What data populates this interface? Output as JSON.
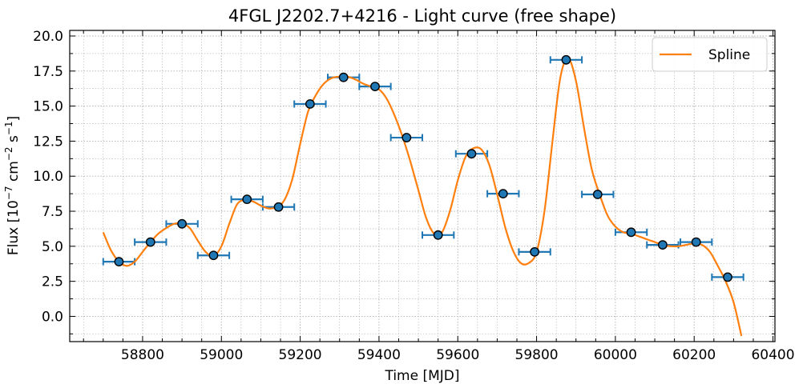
{
  "chart_data": {
    "type": "line",
    "title": "4FGL J2202.7+4216 - Light curve (free shape)",
    "xlabel": "Time [MJD]",
    "ylabel": {
      "pre": "Flux [10",
      "exp1": "−7",
      "mid": " cm",
      "exp2": "−2",
      "mid2": " s",
      "exp3": "−1",
      "post": "]"
    },
    "xlim": [
      58615,
      60405
    ],
    "ylim": [
      -1.8,
      20.4
    ],
    "xticks": [
      58800,
      59000,
      59200,
      59400,
      59600,
      59800,
      60000,
      60200,
      60400
    ],
    "yticks": [
      0.0,
      2.5,
      5.0,
      7.5,
      10.0,
      12.5,
      15.0,
      17.5,
      20.0
    ],
    "ytick_labels": [
      "0.0",
      "2.5",
      "5.0",
      "7.5",
      "10.0",
      "12.5",
      "15.0",
      "17.5",
      "20.0"
    ],
    "grid": true,
    "legend": {
      "placement": "top-right",
      "entries": [
        "Spline"
      ]
    },
    "colors": {
      "spline": "#ff7f0e",
      "points": "#1f77b4",
      "errorbars": "#1f77b4"
    },
    "series": [
      {
        "name": "Spline",
        "kind": "line",
        "x": [
          58700,
          58720,
          58740,
          58760,
          58780,
          58800,
          58820,
          58840,
          58860,
          58880,
          58900,
          58920,
          58940,
          58960,
          58980,
          59000,
          59020,
          59040,
          59060,
          59080,
          59100,
          59120,
          59140,
          59160,
          59180,
          59200,
          59220,
          59240,
          59260,
          59280,
          59300,
          59320,
          59340,
          59360,
          59380,
          59400,
          59420,
          59440,
          59460,
          59480,
          59500,
          59520,
          59540,
          59560,
          59580,
          59600,
          59620,
          59640,
          59660,
          59680,
          59700,
          59720,
          59740,
          59760,
          59780,
          59800,
          59820,
          59840,
          59860,
          59880,
          59900,
          59920,
          59940,
          59960,
          59980,
          60000,
          60020,
          60040,
          60060,
          60080,
          60100,
          60120,
          60140,
          60160,
          60180,
          60200,
          60220,
          60240,
          60260,
          60280,
          60300,
          60320
        ],
        "y": [
          6.0,
          4.7,
          3.9,
          3.6,
          3.9,
          4.6,
          5.3,
          5.9,
          6.3,
          6.6,
          6.6,
          6.3,
          5.4,
          4.6,
          4.3,
          5.0,
          6.6,
          8.0,
          8.3,
          8.2,
          7.9,
          7.7,
          7.8,
          8.3,
          9.8,
          12.3,
          14.6,
          15.8,
          16.6,
          17.0,
          17.1,
          17.1,
          16.9,
          16.6,
          16.4,
          16.2,
          15.5,
          14.3,
          12.8,
          11.0,
          9.0,
          7.0,
          5.9,
          6.0,
          7.5,
          9.7,
          11.4,
          12.0,
          11.9,
          10.8,
          8.7,
          6.4,
          4.7,
          3.8,
          3.8,
          4.6,
          7.5,
          12.4,
          17.0,
          18.4,
          16.8,
          13.5,
          10.5,
          8.7,
          7.2,
          6.4,
          6.0,
          5.9,
          5.7,
          5.5,
          5.3,
          5.1,
          5.0,
          5.0,
          5.1,
          5.2,
          5.1,
          4.6,
          3.6,
          2.5,
          1.0,
          -1.4
        ]
      },
      {
        "name": "Flux",
        "kind": "errorbar",
        "x": [
          58740,
          58820,
          58900,
          58980,
          59065,
          59145,
          59225,
          59310,
          59390,
          59470,
          59550,
          59635,
          59715,
          59795,
          59875,
          59955,
          60040,
          60120,
          60205,
          60285
        ],
        "y": [
          3.9,
          5.3,
          6.6,
          4.35,
          8.35,
          7.8,
          15.15,
          17.05,
          16.4,
          12.75,
          5.8,
          11.6,
          8.75,
          4.6,
          18.3,
          8.7,
          6.0,
          5.1,
          5.3,
          2.8
        ],
        "xerr": 40,
        "yerr": 0.25
      }
    ]
  }
}
